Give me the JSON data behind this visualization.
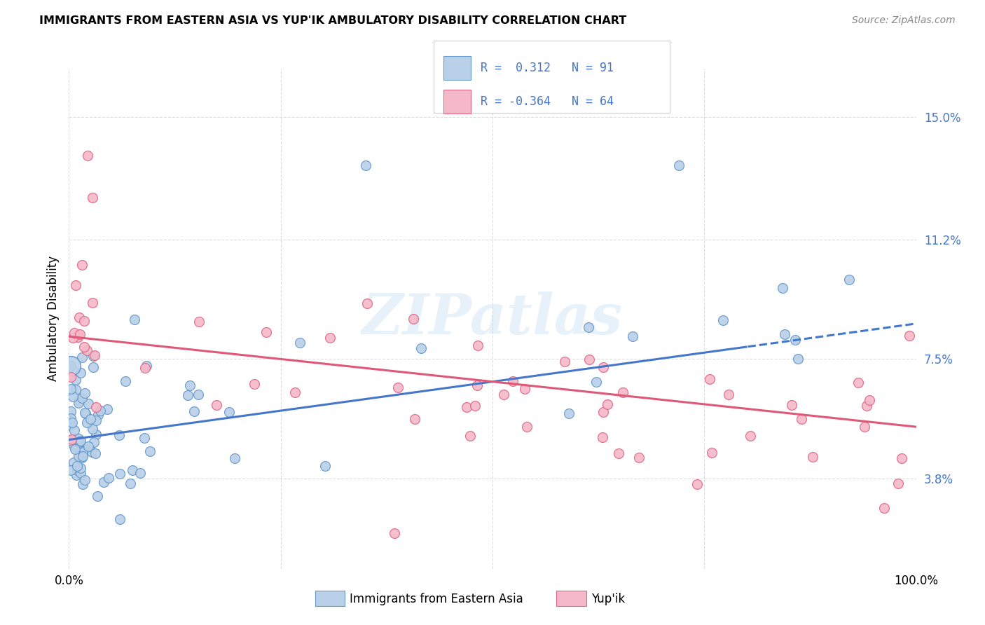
{
  "title": "IMMIGRANTS FROM EASTERN ASIA VS YUP'IK AMBULATORY DISABILITY CORRELATION CHART",
  "source": "Source: ZipAtlas.com",
  "ylabel": "Ambulatory Disability",
  "xlim": [
    0,
    1.0
  ],
  "ylim": [
    0.01,
    0.165
  ],
  "yticks": [
    0.038,
    0.075,
    0.112,
    0.15
  ],
  "ytick_labels": [
    "3.8%",
    "7.5%",
    "11.2%",
    "15.0%"
  ],
  "r_blue": 0.312,
  "n_blue": 91,
  "r_pink": -0.364,
  "n_pink": 64,
  "blue_fill": "#b8d0e8",
  "blue_edge": "#6699cc",
  "pink_fill": "#f5b8c8",
  "pink_edge": "#e06888",
  "blue_line": "#4477cc",
  "pink_line": "#e05878",
  "legend_label_blue": "Immigrants from Eastern Asia",
  "legend_label_pink": "Yup'ik",
  "watermark": "ZIPatlas",
  "bg_color": "#ffffff",
  "grid_color": "#dddddd",
  "tick_color": "#4477cc",
  "title_fontsize": 11.5,
  "source_fontsize": 10
}
